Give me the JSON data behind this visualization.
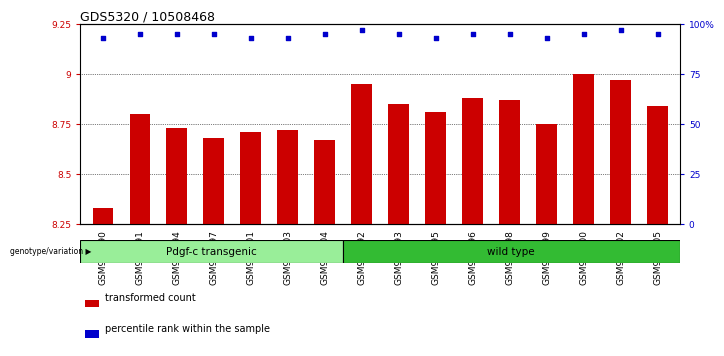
{
  "title": "GDS5320 / 10508468",
  "categories": [
    "GSM936490",
    "GSM936491",
    "GSM936494",
    "GSM936497",
    "GSM936501",
    "GSM936503",
    "GSM936504",
    "GSM936492",
    "GSM936493",
    "GSM936495",
    "GSM936496",
    "GSM936498",
    "GSM936499",
    "GSM936500",
    "GSM936502",
    "GSM936505"
  ],
  "bar_values": [
    8.33,
    8.8,
    8.73,
    8.68,
    8.71,
    8.72,
    8.67,
    8.95,
    8.85,
    8.81,
    8.88,
    8.87,
    8.75,
    9.0,
    8.97,
    8.84
  ],
  "percentile_values": [
    93,
    95,
    95,
    95,
    93,
    93,
    95,
    97,
    95,
    93,
    95,
    95,
    93,
    95,
    97,
    95
  ],
  "bar_color": "#cc0000",
  "dot_color": "#0000cc",
  "ylim_left": [
    8.25,
    9.25
  ],
  "ylim_right": [
    0,
    100
  ],
  "yticks_left": [
    8.25,
    8.5,
    8.75,
    9.0,
    9.25
  ],
  "ytick_labels_left": [
    "8.25",
    "8.5",
    "8.75",
    "9",
    "9.25"
  ],
  "yticks_right": [
    0,
    25,
    50,
    75,
    100
  ],
  "ytick_labels_right": [
    "0",
    "25",
    "50",
    "75",
    "100%"
  ],
  "gridlines": [
    8.5,
    8.75,
    9.0
  ],
  "group1_label": "Pdgf-c transgenic",
  "group2_label": "wild type",
  "group1_count": 7,
  "group2_count": 9,
  "group1_color": "#99ee99",
  "group2_color": "#33bb33",
  "genotype_label": "genotype/variation",
  "legend_bar_label": "transformed count",
  "legend_dot_label": "percentile rank within the sample",
  "bar_width": 0.55,
  "title_fontsize": 9,
  "tick_fontsize": 6.5,
  "group_label_fontsize": 7.5
}
